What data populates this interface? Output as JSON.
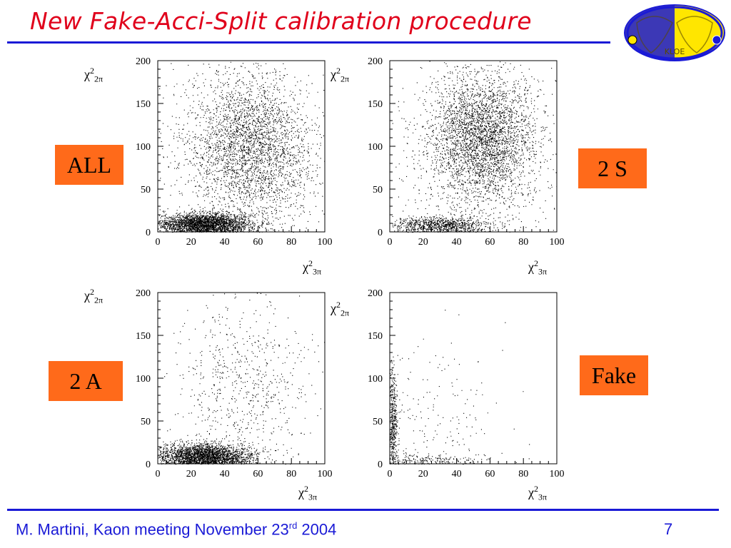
{
  "slide": {
    "title": "New Fake-Acci-Split calibration procedure",
    "footer": {
      "author_meeting": "M. Martini, Kaon meeting  November 23",
      "sup": "rd",
      "year": " 2004",
      "page": "7"
    },
    "logo": {
      "text": "KLOE",
      "icon": "kloe-logo-icon"
    },
    "colors": {
      "title": "#e0001b",
      "rule": "#1a1ad6",
      "tag": "#ff6a1a",
      "footer": "#1a1ad6",
      "logo_blue": "#1a1ad6",
      "logo_yellow": "#ffe600"
    }
  },
  "chart_data": [
    {
      "type": "scatter",
      "label": "ALL",
      "xlabel": {
        "chi": "χ",
        "sup": "2",
        "sub": "3π"
      },
      "ylabel": {
        "chi": "χ",
        "sup": "2",
        "sub": "2π"
      },
      "xlim": [
        0,
        100
      ],
      "ylim": [
        0,
        200
      ],
      "xticks": [
        0,
        20,
        40,
        60,
        80,
        100
      ],
      "yticks": [
        0,
        50,
        100,
        150,
        200
      ],
      "clusters": [
        {
          "cx": 28,
          "cy": 10,
          "sx": 14,
          "sy": 6,
          "n": 2600
        },
        {
          "cx": 55,
          "cy": 100,
          "sx": 18,
          "sy": 40,
          "n": 2600
        },
        {
          "cx": 50,
          "cy": 100,
          "sx": 30,
          "sy": 60,
          "n": 700
        }
      ]
    },
    {
      "type": "scatter",
      "label": "2 S",
      "xlabel": {
        "chi": "χ",
        "sup": "2",
        "sub": "3π"
      },
      "ylabel": {
        "chi": "χ",
        "sup": "2",
        "sub": "2π"
      },
      "xlim": [
        0,
        100
      ],
      "ylim": [
        0,
        200
      ],
      "xticks": [
        0,
        20,
        40,
        60,
        80,
        100
      ],
      "yticks": [
        0,
        50,
        100,
        150,
        200
      ],
      "clusters": [
        {
          "cx": 55,
          "cy": 110,
          "sx": 16,
          "sy": 38,
          "n": 3200
        },
        {
          "cx": 30,
          "cy": 8,
          "sx": 14,
          "sy": 5,
          "n": 900
        },
        {
          "cx": 55,
          "cy": 100,
          "sx": 28,
          "sy": 60,
          "n": 600
        }
      ]
    },
    {
      "type": "scatter",
      "label": "2 A",
      "xlabel": {
        "chi": "χ",
        "sup": "2",
        "sub": "3π"
      },
      "ylabel": {
        "chi": "χ",
        "sup": "2",
        "sub": "2π"
      },
      "xlim": [
        0,
        100
      ],
      "ylim": [
        0,
        200
      ],
      "xticks": [
        0,
        20,
        40,
        60,
        80,
        100
      ],
      "yticks": [
        0,
        50,
        100,
        150,
        200
      ],
      "clusters": [
        {
          "cx": 28,
          "cy": 10,
          "sx": 14,
          "sy": 7,
          "n": 2600
        },
        {
          "cx": 50,
          "cy": 90,
          "sx": 20,
          "sy": 55,
          "n": 700
        }
      ]
    },
    {
      "type": "scatter",
      "label": "Fake",
      "xlabel": {
        "chi": "χ",
        "sup": "2",
        "sub": "3π"
      },
      "ylabel": {
        "chi": "χ",
        "sup": "2",
        "sub": "2π"
      },
      "xlim": [
        0,
        100
      ],
      "ylim": [
        0,
        200
      ],
      "xticks": [
        0,
        20,
        40,
        60,
        80,
        100
      ],
      "yticks": [
        0,
        50,
        100,
        150,
        200
      ],
      "clusters": [
        {
          "cx": 1.5,
          "cy": 50,
          "sx": 1.5,
          "sy": 30,
          "n": 500
        },
        {
          "cx": 20,
          "cy": 5,
          "sx": 18,
          "sy": 4,
          "n": 200
        },
        {
          "cx": 25,
          "cy": 60,
          "sx": 22,
          "sy": 50,
          "n": 180
        }
      ]
    }
  ]
}
